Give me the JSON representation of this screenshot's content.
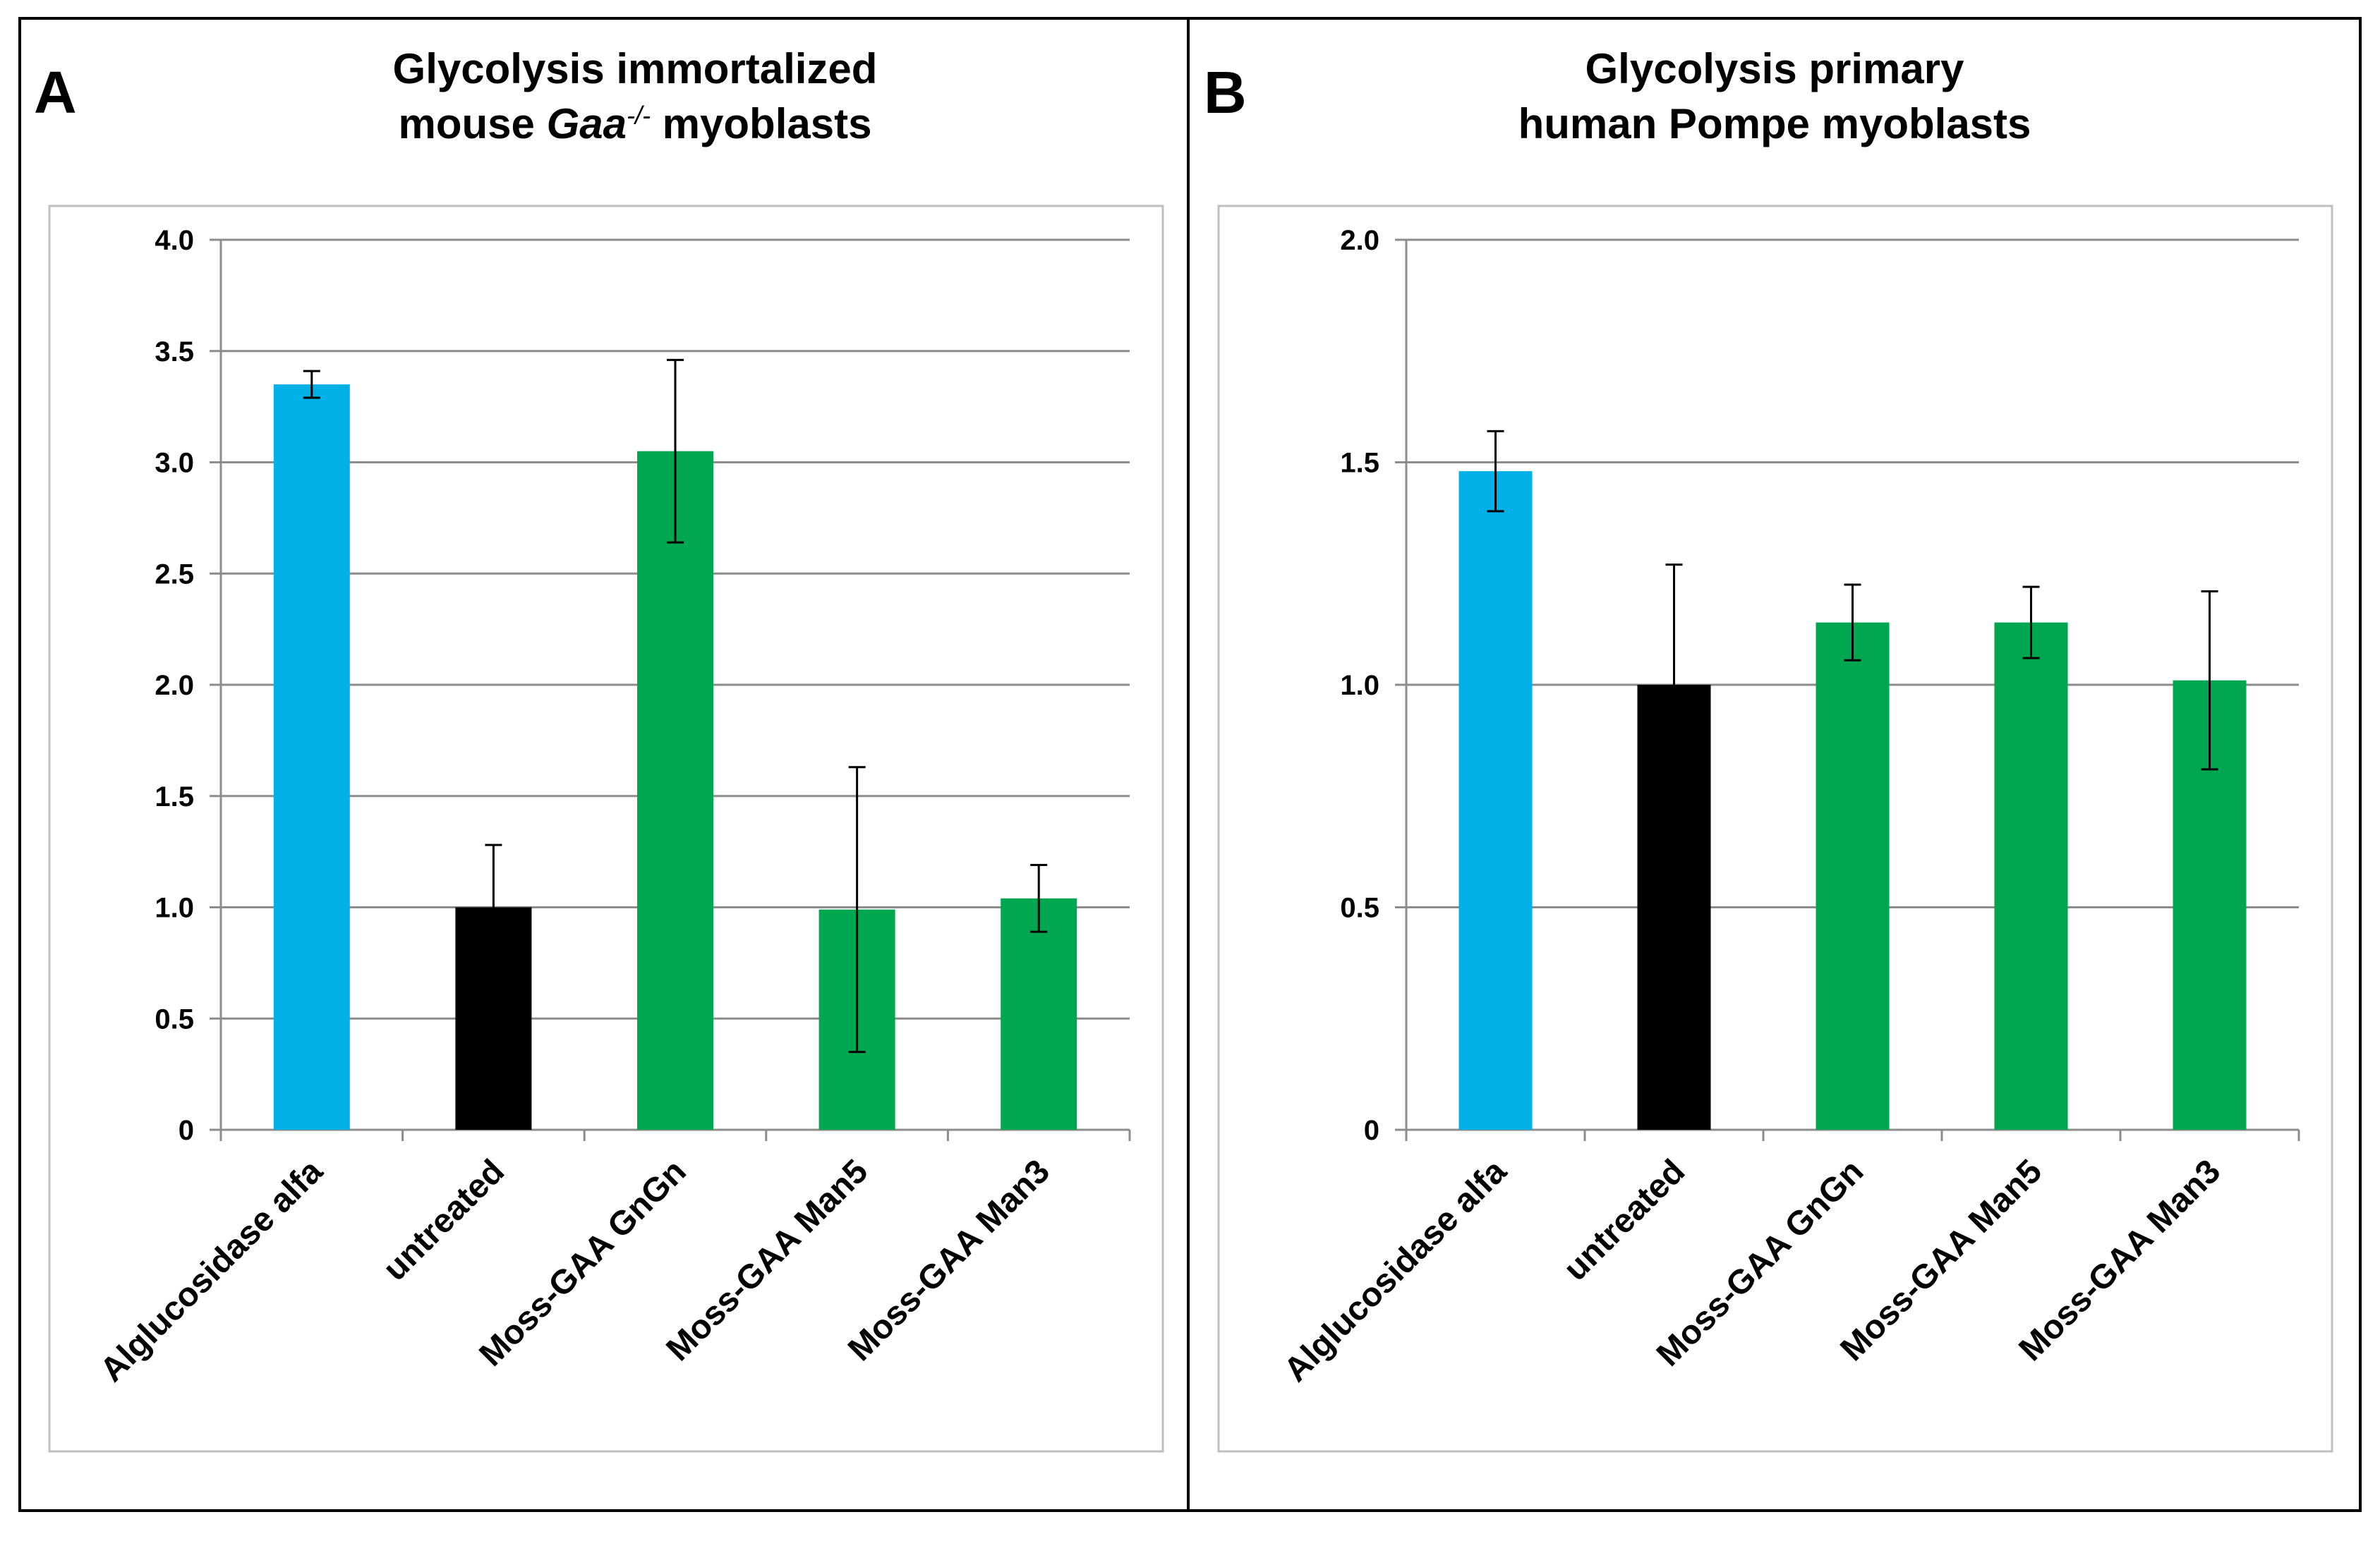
{
  "chart_data": [
    {
      "type": "bar",
      "panel_letter": "A",
      "title_line1": "Glycolysis immortalized",
      "title_line2_prefix": "mouse ",
      "title_line2_italic": "Gaa",
      "title_line2_superscript": "-/-",
      "title_line2_suffix": " myoblasts",
      "categories": [
        "Alglucosidase alfa",
        "untreated",
        "Moss-GAA GnGn",
        "Moss-GAA Man5",
        "Moss-GAA Man3"
      ],
      "values": [
        3.35,
        1.0,
        3.05,
        0.99,
        1.04
      ],
      "errors": [
        0.06,
        0.28,
        0.41,
        0.64,
        0.15
      ],
      "colors": [
        "#00b0e6",
        "#000000",
        "#00a650",
        "#00a650",
        "#00a650"
      ],
      "ylim": [
        0,
        4.0
      ],
      "yticks": [
        0,
        0.5,
        1.0,
        1.5,
        2.0,
        2.5,
        3.0,
        3.5,
        4.0
      ],
      "ytick_labels": [
        "0",
        "0.5",
        "1.0",
        "1.5",
        "2.0",
        "2.5",
        "3.0",
        "3.5",
        "4.0"
      ],
      "xlabel": "",
      "ylabel": "",
      "grid": true
    },
    {
      "type": "bar",
      "panel_letter": "B",
      "title_line1": "Glycolysis primary",
      "title_line2": "human Pompe myoblasts",
      "categories": [
        "Alglucosidase alfa",
        "untreated",
        "Moss-GAA GnGn",
        "Moss-GAA Man5",
        "Moss-GAA Man3"
      ],
      "values": [
        1.48,
        1.0,
        1.14,
        1.14,
        1.01
      ],
      "errors": [
        0.09,
        0.27,
        0.085,
        0.08,
        0.2
      ],
      "colors": [
        "#00b0e6",
        "#000000",
        "#00a650",
        "#00a650",
        "#00a650"
      ],
      "ylim": [
        0,
        2.0
      ],
      "yticks": [
        0,
        0.5,
        1.0,
        1.5,
        2.0
      ],
      "ytick_labels": [
        "0",
        "0.5",
        "1.0",
        "1.5",
        "2.0"
      ],
      "xlabel": "",
      "ylabel": "",
      "grid": true
    }
  ]
}
